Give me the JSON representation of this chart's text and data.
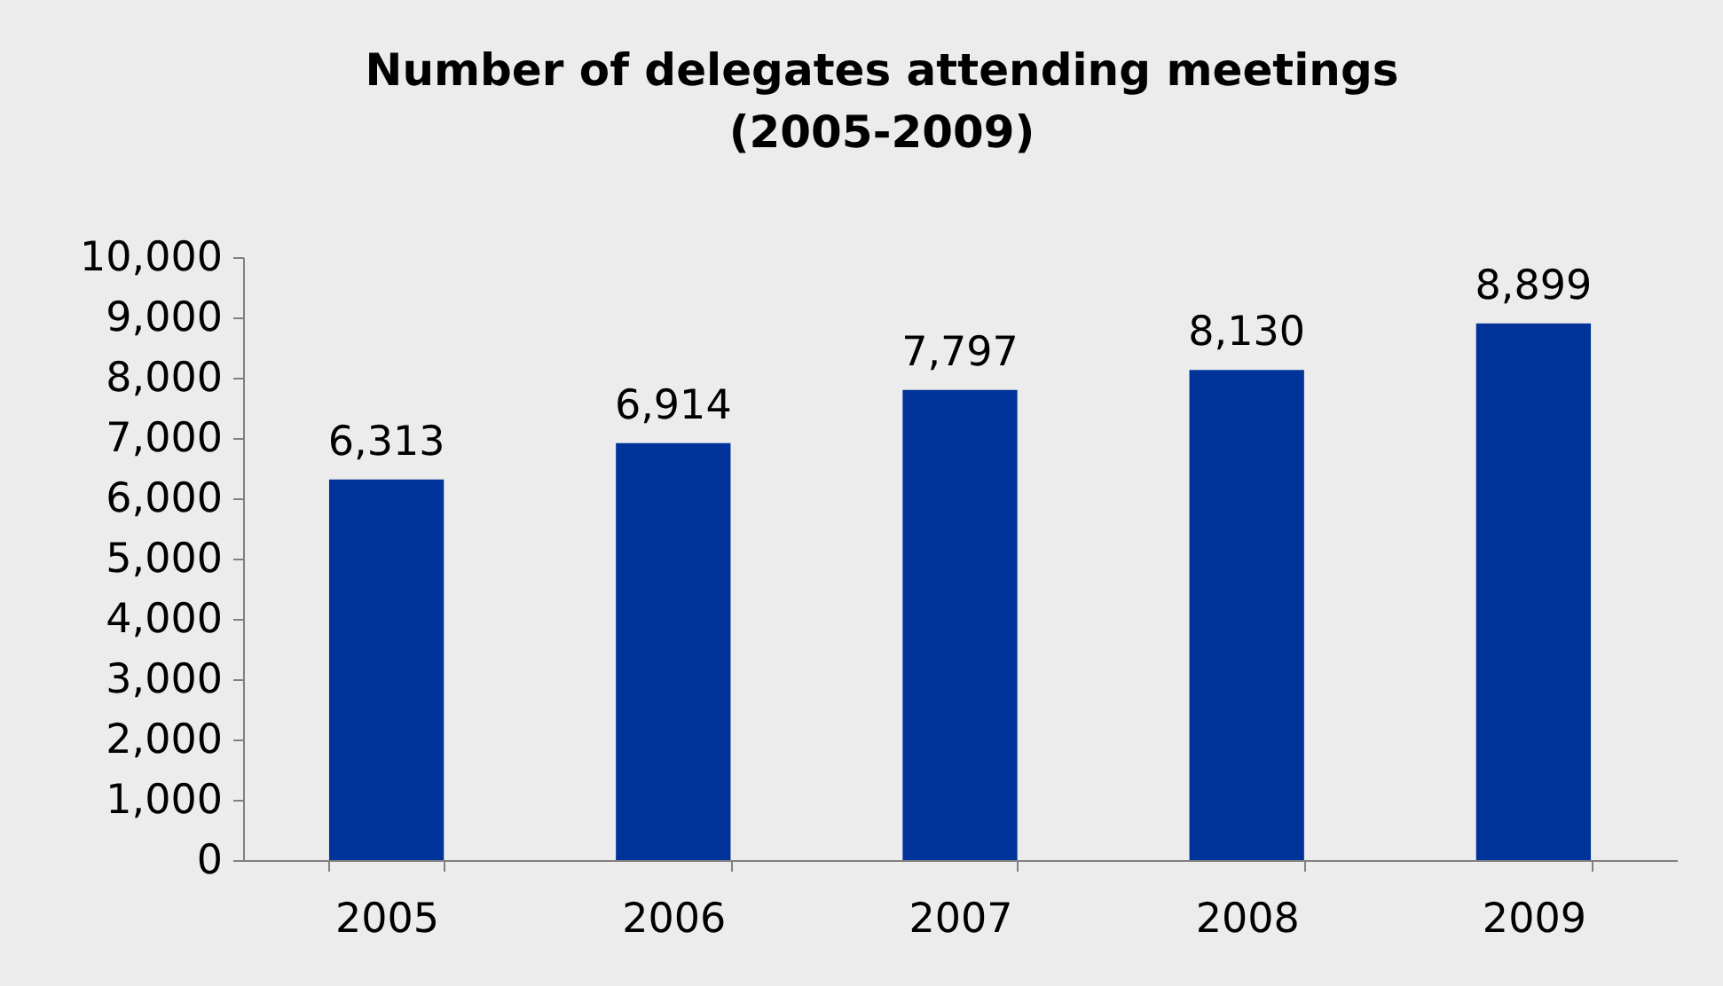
{
  "chart_data": {
    "type": "bar",
    "title": "Number of delegates attending meetings\n(2005-2009)",
    "categories": [
      "2005",
      "2006",
      "2007",
      "2008",
      "2009"
    ],
    "values": [
      6313,
      6914,
      7797,
      8130,
      8899
    ],
    "color": "#003399",
    "value_labels": [
      "6,313",
      "6,914",
      "7,797",
      "8,130",
      "8,899"
    ],
    "ylim": [
      0,
      10000
    ],
    "yticks": [
      0,
      {
        "value": 1000,
        "label": "1,000"
      },
      {
        "value": 2000,
        "label": "2,000"
      },
      {
        "value": 3000,
        "label": "3,000"
      },
      {
        "value": 4000,
        "label": "4,000"
      },
      {
        "value": 5000,
        "label": "5,000"
      },
      {
        "value": 6000,
        "label": "6,000"
      },
      {
        "value": 7000,
        "label": "7,000"
      },
      {
        "value": 8000,
        "label": "8,000"
      },
      {
        "value": 9000,
        "label": "9,000"
      },
      {
        "value": 10000,
        "label": "10,000"
      }
    ]
  }
}
